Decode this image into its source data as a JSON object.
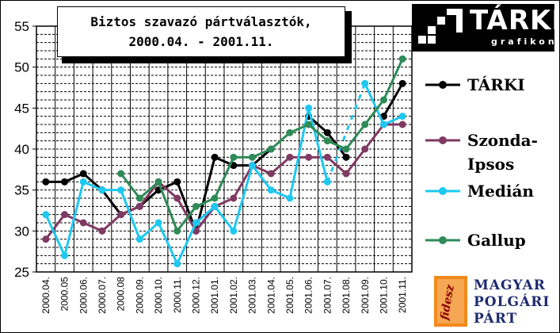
{
  "title": {
    "line1": "Biztos szavazó pártválasztók,",
    "line2": "2000.04. - 2001.11."
  },
  "logos": {
    "tarki_word": "TÁRKI",
    "tarki_sub": "grafikon",
    "fidesz_word": "fidesz",
    "party_line1": "MAGYAR",
    "party_line2": "POLGÁRI",
    "party_line3": "PÁRT"
  },
  "chart_data": {
    "type": "line",
    "title": "Biztos szavazó pártválasztók, 2000.04. - 2001.11.",
    "xlabel": "",
    "ylabel": "",
    "ylim": [
      25,
      55
    ],
    "yticks": [
      25,
      30,
      35,
      40,
      45,
      50,
      55
    ],
    "grid": true,
    "legend_position": "right",
    "categories": [
      "2000.04.",
      "2000.05",
      "2000.06.",
      "2000.07.",
      "2000.08",
      "2000.09.",
      "2000.10.",
      "2000.11.",
      "2000.12.",
      "2001.01.",
      "2001.02.",
      "2001.03.",
      "2001.04.",
      "2001.05.",
      "2001.06.",
      "2001.07.",
      "2001.08.",
      "2001.09.",
      "2001.10.",
      "2001.11."
    ],
    "series": [
      {
        "name": "TÁRKI",
        "color": "#000000",
        "values": [
          36,
          36,
          37,
          35,
          32,
          33,
          35,
          36,
          30,
          39,
          38,
          38,
          40,
          null,
          44,
          42,
          39,
          null,
          44,
          48
        ]
      },
      {
        "name": "Szonda-Ipsos",
        "color": "#7f3a62",
        "values": [
          29,
          32,
          31,
          30,
          32,
          33,
          36,
          34,
          30,
          33,
          34,
          38,
          37,
          39,
          39,
          39,
          37,
          40,
          43,
          43
        ]
      },
      {
        "name": "Medián",
        "color": "#1ec8f0",
        "values": [
          32,
          27,
          36,
          35,
          35,
          29,
          31,
          26,
          31,
          33,
          30,
          38,
          35,
          34,
          45,
          36,
          null,
          48,
          43,
          44
        ]
      },
      {
        "name": "Gallup",
        "color": "#2e8b57",
        "values": [
          null,
          null,
          null,
          null,
          37,
          34,
          36,
          30,
          33,
          34,
          39,
          39,
          40,
          42,
          43,
          41,
          40,
          43,
          46,
          51
        ]
      }
    ],
    "dashed_segments": [
      {
        "series": "Medián",
        "from": "2001.07.",
        "to": "2001.09."
      }
    ]
  }
}
